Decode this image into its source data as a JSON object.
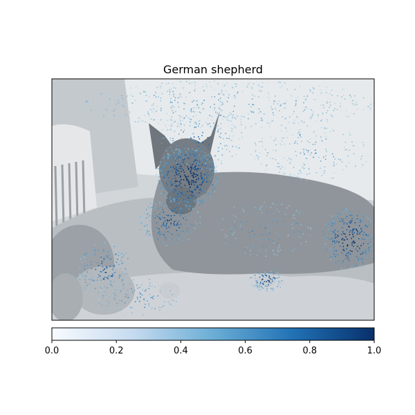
{
  "chart_data": {
    "type": "heatmap",
    "title": "German shepherd",
    "description_of_image": "saliency/attribution map overlaid on a grayscale photo",
    "colormap": "Blues",
    "colorbar": {
      "orientation": "horizontal",
      "range": [
        0.0,
        1.0
      ],
      "ticks": [
        0.0,
        0.2,
        0.4,
        0.6,
        0.8,
        1.0
      ],
      "tick_labels": [
        "0.0",
        "0.2",
        "0.4",
        "0.6",
        "0.8",
        "1.0"
      ]
    },
    "colors": {
      "cmap_low": "#f7fbff",
      "cmap_mid": "#6baed6",
      "cmap_high": "#08306b"
    }
  }
}
